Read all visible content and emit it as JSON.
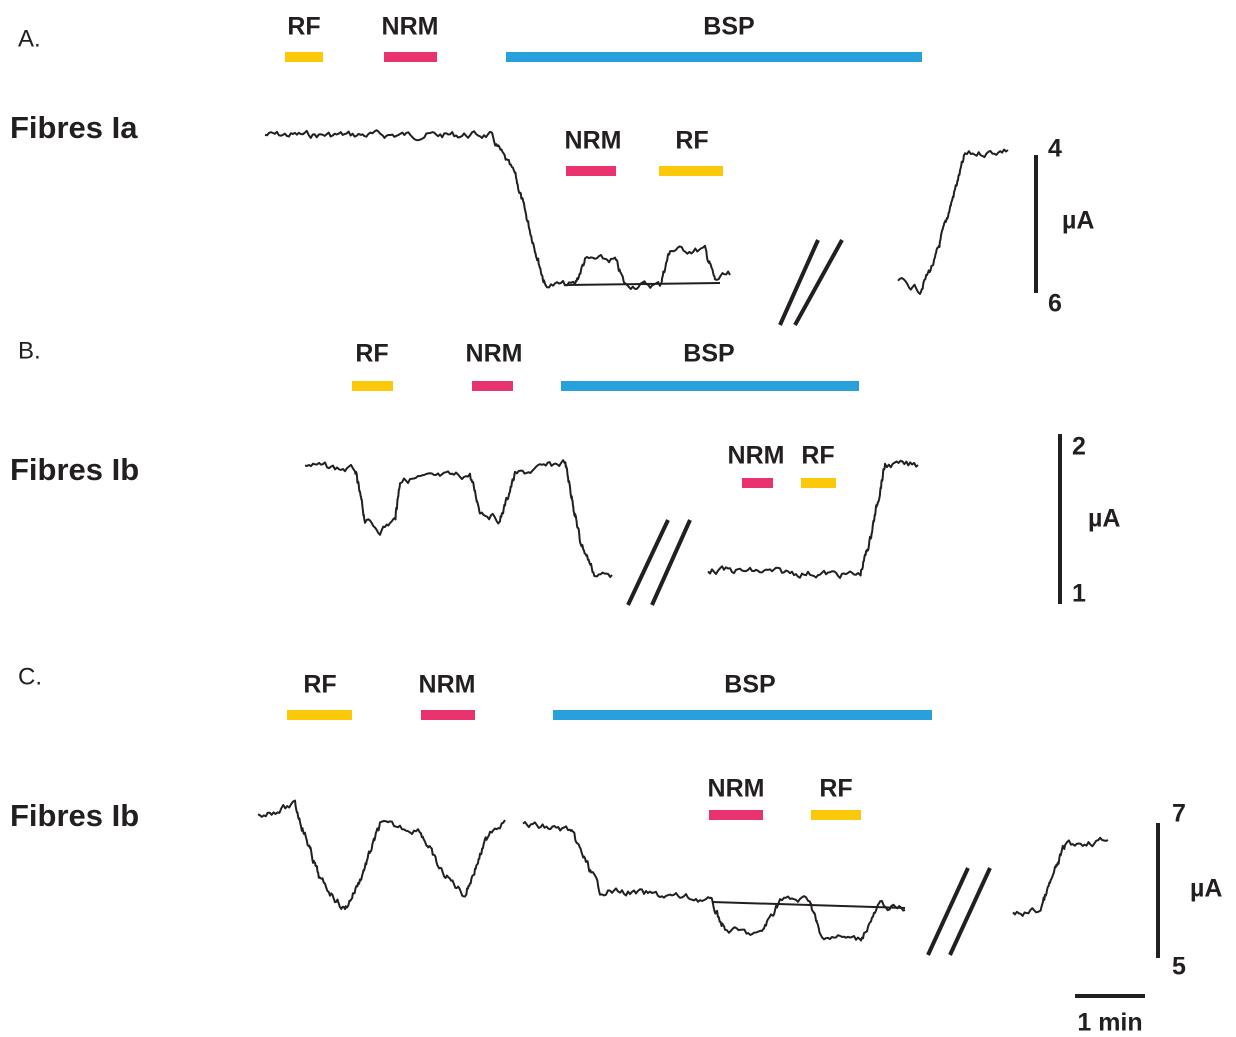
{
  "panels": [
    {
      "label": "A.",
      "title": "Fibres Ia",
      "protocol": [
        "RF",
        "NRM",
        "BSP"
      ],
      "test": [
        "NRM",
        "RF"
      ],
      "scale": {
        "top": "4",
        "unit": "µA",
        "bottom": "6"
      }
    },
    {
      "label": "B.",
      "title": "Fibres Ib",
      "protocol": [
        "RF",
        "NRM",
        "BSP"
      ],
      "test": [
        "NRM",
        "RF"
      ],
      "scale": {
        "top": "2",
        "unit": "µA",
        "bottom": "1"
      }
    },
    {
      "label": "C.",
      "title": "Fibres Ib",
      "protocol": [
        "RF",
        "NRM",
        "BSP"
      ],
      "test": [
        "NRM",
        "RF"
      ],
      "scale": {
        "top": "7",
        "unit": "µA",
        "bottom": "5"
      }
    }
  ],
  "time_scale": "1 min"
}
